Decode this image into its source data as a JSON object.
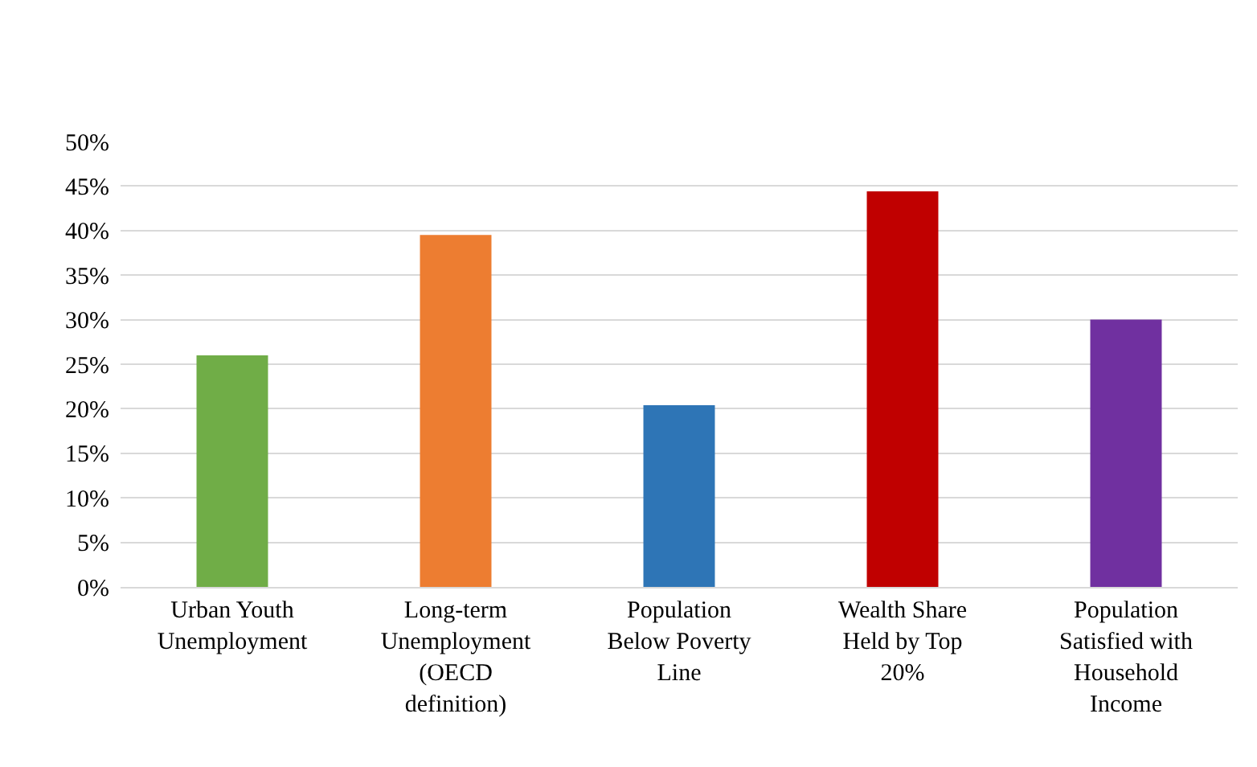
{
  "chart_data": {
    "type": "bar",
    "categories": [
      "Urban Youth Unemployment",
      "Long-term Unemployment (OECD definition)",
      "Population Below Poverty Line",
      "Wealth Share Held by Top 20%",
      "Population Satisfied with Household Income"
    ],
    "values": [
      26,
      39.5,
      20.4,
      44.4,
      30
    ],
    "colors": [
      "#70ad47",
      "#ed7d31",
      "#2e75b6",
      "#c00000",
      "#7030a0"
    ],
    "ylim": [
      0,
      50
    ],
    "yticks": [
      {
        "value": 0,
        "label": "0%"
      },
      {
        "value": 5,
        "label": "5%"
      },
      {
        "value": 10,
        "label": "10%"
      },
      {
        "value": 15,
        "label": "15%"
      },
      {
        "value": 20,
        "label": "20%"
      },
      {
        "value": 25,
        "label": "25%"
      },
      {
        "value": 30,
        "label": "30%"
      },
      {
        "value": 35,
        "label": "35%"
      },
      {
        "value": 40,
        "label": "40%"
      },
      {
        "value": 45,
        "label": "45%"
      },
      {
        "value": 50,
        "label": "50%"
      }
    ],
    "grid": "y"
  }
}
